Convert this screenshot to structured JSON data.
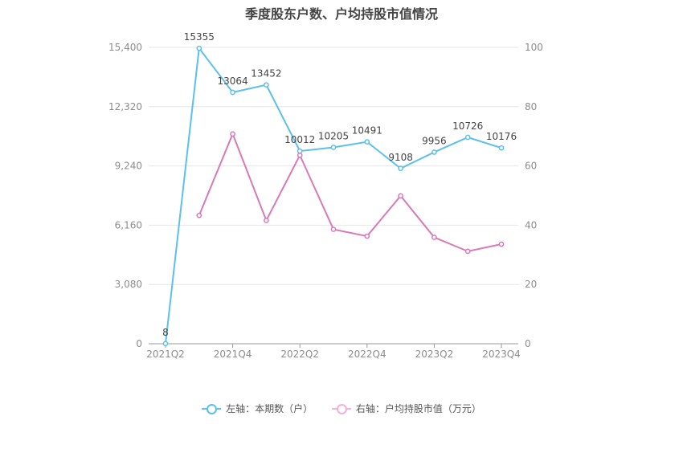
{
  "title": "季度股东户数、户均持股市值情况",
  "chart_data": {
    "type": "line",
    "title": "季度股东户数、户均持股市值情况",
    "x": [
      "2021Q2",
      "2021Q3",
      "2021Q4",
      "2022Q1",
      "2022Q2",
      "2022Q3",
      "2022Q4",
      "2023Q1",
      "2023Q2",
      "2023Q3",
      "2023Q4"
    ],
    "x_tick_labels": [
      "2021Q2",
      "2021Q4",
      "2022Q2",
      "2022Q4",
      "2023Q2",
      "2023Q4"
    ],
    "y_left": {
      "ticks": [
        "0",
        "3,080",
        "6,160",
        "9,240",
        "12,320",
        "15,400"
      ],
      "range": [
        0,
        15400
      ]
    },
    "y_right": {
      "ticks": [
        "0",
        "20",
        "40",
        "60",
        "80",
        "100"
      ],
      "range": [
        0,
        100
      ]
    },
    "series": [
      {
        "name": "左轴：本期数（户）",
        "axis": "left",
        "color": "#5bc0eb",
        "values": [
          8,
          15355,
          13064,
          13452,
          10012,
          10205,
          10491,
          9108,
          9956,
          10726,
          10176
        ],
        "labels": [
          "8",
          "15355",
          "13064",
          "13452",
          "10012",
          "10205",
          "10491",
          "9108",
          "9956",
          "10726",
          "10176"
        ]
      },
      {
        "name": "右轴：户均持股市值（万元）",
        "axis": "right",
        "color": "#d97ab8",
        "values": [
          null,
          43.3,
          70.8,
          41.6,
          63.6,
          38.6,
          36.3,
          49.9,
          35.9,
          31.2,
          33.6
        ]
      }
    ],
    "grid": true,
    "legend_position": "bottom"
  }
}
